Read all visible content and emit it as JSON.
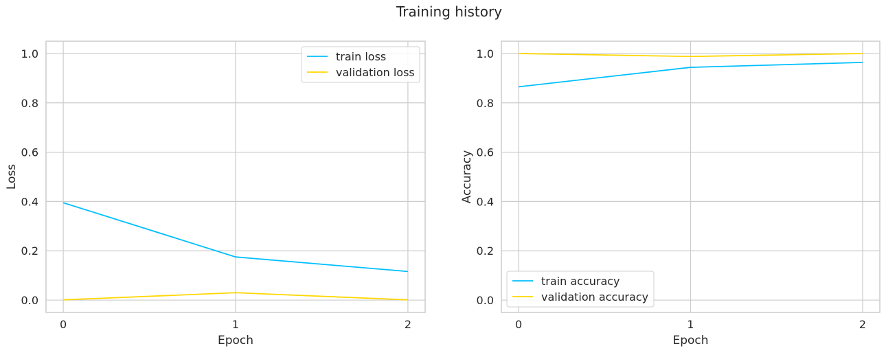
{
  "title": "Training history",
  "colors": {
    "train": "#00BFFF",
    "validation": "#FFD700",
    "grid": "#cccccc"
  },
  "chart_data": [
    {
      "type": "line",
      "xlabel": "Epoch",
      "ylabel": "Loss",
      "x": [
        0,
        1,
        2
      ],
      "xticks": [
        "0",
        "1",
        "2"
      ],
      "yticks": [
        "0.0",
        "0.2",
        "0.4",
        "0.6",
        "0.8",
        "1.0"
      ],
      "xlim": [
        -0.1,
        2.1
      ],
      "ylim": [
        -0.05,
        1.05
      ],
      "grid": true,
      "legend_position": "top-right",
      "series": [
        {
          "name": "train loss",
          "color": "#00BFFF",
          "values": [
            0.395,
            0.175,
            0.116
          ]
        },
        {
          "name": "validation loss",
          "color": "#FFD700",
          "values": [
            0.001,
            0.03,
            0.001
          ]
        }
      ]
    },
    {
      "type": "line",
      "xlabel": "Epoch",
      "ylabel": "Accuracy",
      "x": [
        0,
        1,
        2
      ],
      "xticks": [
        "0",
        "1",
        "2"
      ],
      "yticks": [
        "0.0",
        "0.2",
        "0.4",
        "0.6",
        "0.8",
        "1.0"
      ],
      "xlim": [
        -0.1,
        2.1
      ],
      "ylim": [
        -0.05,
        1.05
      ],
      "grid": true,
      "legend_position": "bottom-left",
      "series": [
        {
          "name": "train accuracy",
          "color": "#00BFFF",
          "values": [
            0.865,
            0.944,
            0.964
          ]
        },
        {
          "name": "validation accuracy",
          "color": "#FFD700",
          "values": [
            1.0,
            0.988,
            1.0
          ]
        }
      ]
    }
  ]
}
